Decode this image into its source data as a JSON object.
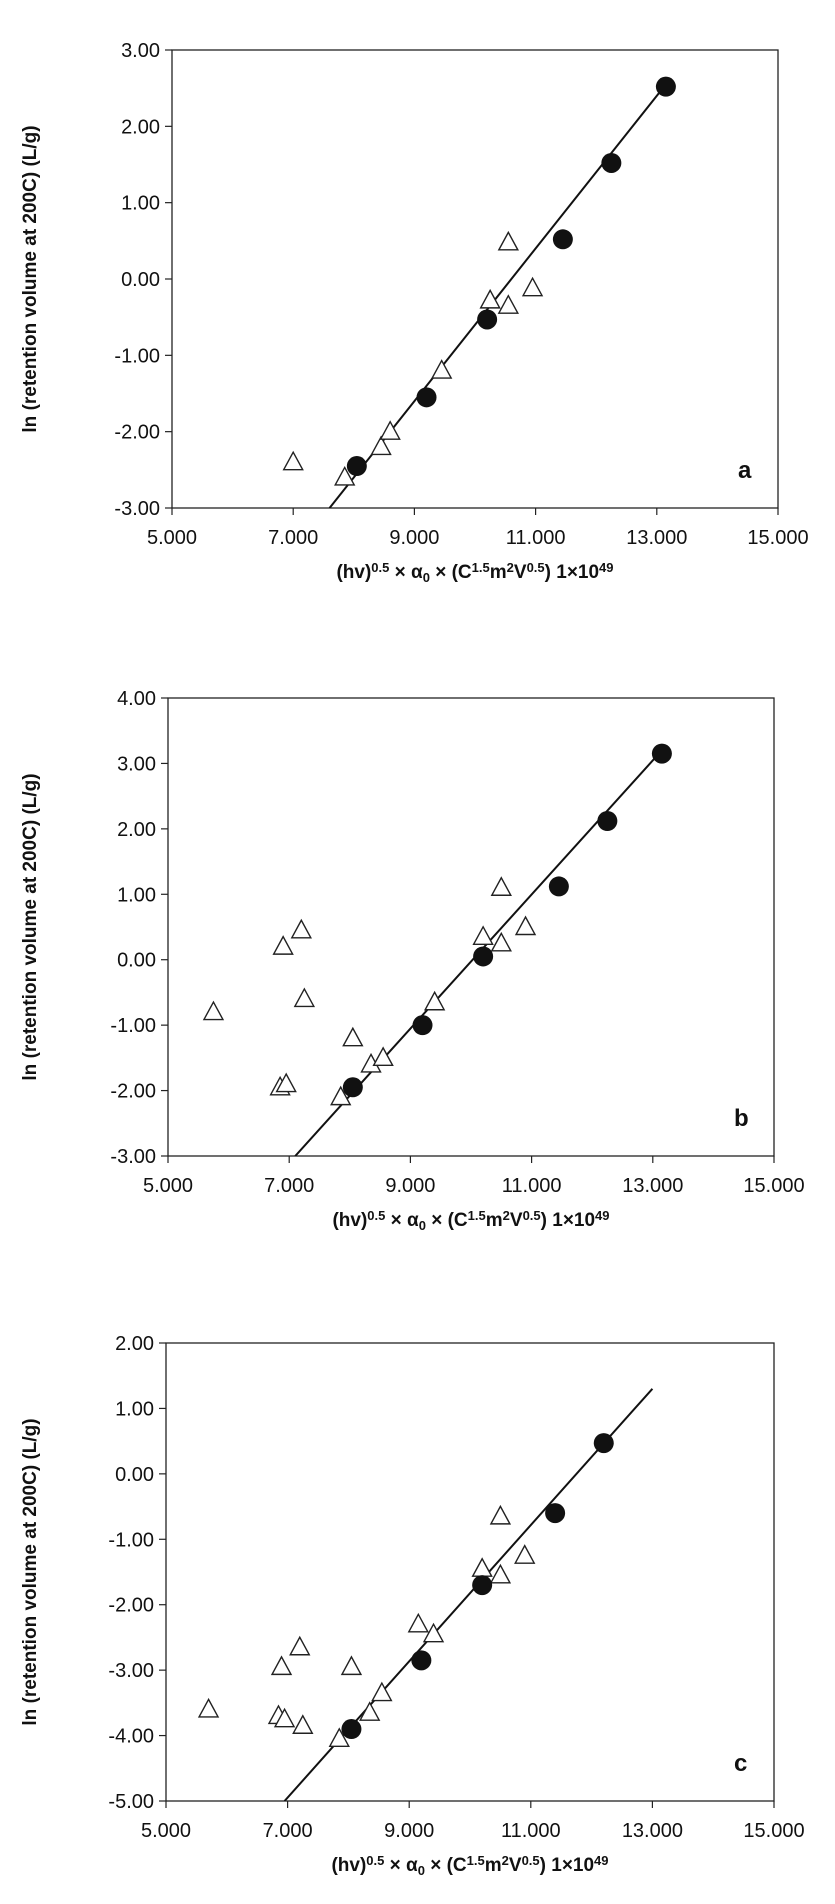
{
  "chart_data": [
    {
      "type": "scatter",
      "panel_label": "a",
      "xlabel": "(hv)0.5 × α0 × (C1.5m2V0.5) 1×1049",
      "ylabel": "ln (retention volume at 200C) (L/g)",
      "xlim": [
        5,
        15
      ],
      "ylim": [
        -3,
        3
      ],
      "x_tick_labels": [
        "5.000",
        "7.000",
        "9.000",
        "11.000",
        "13.000",
        "15.000"
      ],
      "y_tick_labels": [
        "3.00",
        "2.00",
        "1.00",
        "0.00",
        "-1.00",
        "-2.00",
        "-3.00"
      ],
      "grid": false,
      "series": [
        {
          "marker": "filled-circle",
          "points": [
            [
              8.05,
              -2.45
            ],
            [
              9.2,
              -1.55
            ],
            [
              10.2,
              -0.53
            ],
            [
              11.45,
              0.52
            ],
            [
              12.25,
              1.52
            ],
            [
              13.15,
              2.52
            ]
          ]
        },
        {
          "marker": "open-triangle",
          "points": [
            [
              7.0,
              -2.4
            ],
            [
              7.85,
              -2.6
            ],
            [
              8.45,
              -2.2
            ],
            [
              8.6,
              -2.0
            ],
            [
              9.45,
              -1.2
            ],
            [
              10.25,
              -0.28
            ],
            [
              10.55,
              -0.35
            ],
            [
              10.55,
              0.48
            ],
            [
              10.95,
              -0.12
            ]
          ]
        },
        {
          "marker": "fit-line",
          "points": [
            [
              7.6,
              -3.0
            ],
            [
              13.15,
              2.55
            ]
          ]
        }
      ]
    },
    {
      "type": "scatter",
      "panel_label": "b",
      "xlabel": "(hv)0.5 × α0 × (C1.5m2V0.5) 1×1049",
      "ylabel": "ln (retention volume at 200C) (L/g)",
      "xlim": [
        5,
        15
      ],
      "ylim": [
        -3,
        4
      ],
      "x_tick_labels": [
        "5.000",
        "7.000",
        "9.000",
        "11.000",
        "13.000",
        "15.000"
      ],
      "y_tick_labels": [
        "4.00",
        "3.00",
        "2.00",
        "1.00",
        "0.00",
        "-1.00",
        "-2.00",
        "-3.00"
      ],
      "grid": false,
      "series": [
        {
          "marker": "filled-circle",
          "points": [
            [
              8.05,
              -1.95
            ],
            [
              9.2,
              -1.0
            ],
            [
              10.2,
              0.05
            ],
            [
              11.45,
              1.12
            ],
            [
              12.25,
              2.12
            ],
            [
              13.15,
              3.15
            ]
          ]
        },
        {
          "marker": "open-triangle",
          "points": [
            [
              5.75,
              -0.8
            ],
            [
              6.85,
              -1.95
            ],
            [
              6.95,
              -1.9
            ],
            [
              6.9,
              0.2
            ],
            [
              7.2,
              0.45
            ],
            [
              7.25,
              -0.6
            ],
            [
              7.85,
              -2.1
            ],
            [
              8.05,
              -1.2
            ],
            [
              8.35,
              -1.6
            ],
            [
              8.55,
              -1.5
            ],
            [
              9.4,
              -0.65
            ],
            [
              10.2,
              0.35
            ],
            [
              10.5,
              0.25
            ],
            [
              10.5,
              1.1
            ],
            [
              10.9,
              0.5
            ]
          ]
        },
        {
          "marker": "fit-line",
          "points": [
            [
              7.1,
              -3.0
            ],
            [
              13.15,
              3.2
            ]
          ]
        }
      ]
    },
    {
      "type": "scatter",
      "panel_label": "c",
      "xlabel": "(hv)0.5 × α0 × (C1.5m2V0.5) 1×1049",
      "ylabel": "ln (retention volume at 200C) (L/g)",
      "xlim": [
        5,
        15
      ],
      "ylim": [
        -5,
        2
      ],
      "x_tick_labels": [
        "5.000",
        "7.000",
        "9.000",
        "11.000",
        "13.000",
        "15.000"
      ],
      "y_tick_labels": [
        "2.00",
        "1.00",
        "0.00",
        "-1.00",
        "-2.00",
        "-3.00",
        "-4.00",
        "-5.00"
      ],
      "grid": false,
      "series": [
        {
          "marker": "filled-circle",
          "points": [
            [
              8.05,
              -3.9
            ],
            [
              9.2,
              -2.85
            ],
            [
              10.2,
              -1.7
            ],
            [
              11.4,
              -0.6
            ],
            [
              12.2,
              0.47
            ]
          ]
        },
        {
          "marker": "open-triangle",
          "points": [
            [
              5.7,
              -3.6
            ],
            [
              6.85,
              -3.7
            ],
            [
              6.95,
              -3.75
            ],
            [
              6.9,
              -2.95
            ],
            [
              7.2,
              -2.65
            ],
            [
              7.25,
              -3.85
            ],
            [
              7.85,
              -4.05
            ],
            [
              8.05,
              -2.95
            ],
            [
              8.35,
              -3.65
            ],
            [
              8.55,
              -3.35
            ],
            [
              9.15,
              -2.3
            ],
            [
              9.4,
              -2.45
            ],
            [
              10.2,
              -1.45
            ],
            [
              10.5,
              -1.55
            ],
            [
              10.5,
              -0.65
            ],
            [
              10.9,
              -1.25
            ]
          ]
        },
        {
          "marker": "fit-line",
          "points": [
            [
              6.95,
              -5.0
            ],
            [
              13.0,
              1.3
            ]
          ]
        }
      ]
    }
  ]
}
